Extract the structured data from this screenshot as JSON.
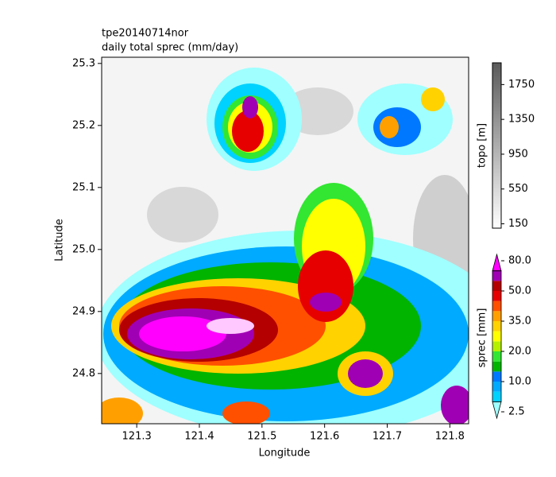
{
  "chart_data": {
    "type": "map",
    "title": "tpe20140714nor",
    "subtitle": "daily total sprec (mm/day)",
    "x_label": "Longitude",
    "y_label": "Latitude",
    "xlim": [
      121.244,
      121.83
    ],
    "ylim": [
      24.719,
      25.31
    ],
    "xticks": [
      121.3,
      121.4,
      121.5,
      121.6,
      121.7,
      121.8
    ],
    "yticks": [
      24.8,
      24.9,
      {
        "value": 25,
        "label": "25.0"
      },
      25.1,
      25.2,
      25.3
    ],
    "topo_colorbar": {
      "label": "topo [m]",
      "lim": [
        100,
        2000
      ],
      "ticks": [
        150,
        550,
        950,
        1350,
        1750
      ]
    },
    "sprec_colorbar": {
      "label": "sprec [mm]",
      "ticks": [
        2.5,
        {
          "value": 10,
          "label": "10.0"
        },
        {
          "value": 20,
          "label": "20.0"
        },
        {
          "value": 35,
          "label": "35.0"
        },
        {
          "value": 50,
          "label": "50.0"
        },
        {
          "value": 80,
          "label": "80.0"
        }
      ],
      "colors": [
        "#a0ffff",
        "#00d2ff",
        "#00aaff",
        "#0078ff",
        "#00b400",
        "#32e632",
        "#b4f000",
        "#ffff00",
        "#ffd200",
        "#ffa000",
        "#ff5000",
        "#e60000",
        "#b40000",
        "#a000b4",
        "#ff00ff"
      ]
    }
  }
}
